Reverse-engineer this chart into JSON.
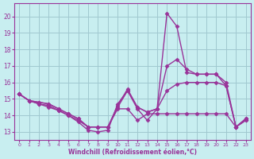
{
  "xlabel": "Windchill (Refroidissement éolien,°C)",
  "background_color": "#c8eef0",
  "grid_color": "#a0c8d0",
  "line_color": "#993399",
  "x": [
    0,
    1,
    2,
    3,
    4,
    5,
    6,
    7,
    8,
    9,
    10,
    11,
    12,
    13,
    14,
    15,
    16,
    17,
    18,
    19,
    20,
    21,
    22,
    23
  ],
  "series": [
    [
      15.3,
      14.9,
      14.8,
      14.7,
      14.4,
      14.1,
      13.8,
      13.3,
      13.3,
      13.3,
      14.4,
      14.4,
      13.7,
      14.1,
      14.1,
      14.1,
      14.1,
      14.1,
      14.1,
      14.1,
      14.1,
      14.1,
      13.3,
      13.7
    ],
    [
      15.3,
      14.9,
      14.8,
      14.7,
      14.4,
      14.1,
      13.8,
      13.3,
      13.3,
      13.3,
      14.5,
      15.5,
      14.4,
      13.7,
      14.4,
      15.5,
      15.9,
      16.0,
      16.0,
      16.0,
      16.0,
      15.8,
      13.3,
      13.7
    ],
    [
      15.3,
      14.9,
      14.7,
      14.6,
      14.3,
      14.0,
      13.7,
      13.3,
      13.3,
      13.3,
      14.6,
      15.6,
      14.5,
      14.2,
      14.4,
      17.0,
      17.4,
      16.8,
      16.5,
      16.5,
      16.5,
      16.0,
      13.3,
      13.8
    ],
    [
      15.3,
      14.9,
      14.7,
      14.5,
      14.3,
      14.0,
      13.6,
      13.1,
      13.0,
      13.1,
      14.7,
      15.5,
      14.5,
      14.2,
      14.4,
      20.2,
      19.4,
      16.6,
      16.5,
      16.5,
      16.5,
      15.8,
      13.3,
      13.8
    ]
  ],
  "ylim": [
    12.5,
    20.8
  ],
  "xlim": [
    -0.5,
    23.5
  ],
  "yticks": [
    13,
    14,
    15,
    16,
    17,
    18,
    19,
    20
  ],
  "xticks": [
    0,
    1,
    2,
    3,
    4,
    5,
    6,
    7,
    8,
    9,
    10,
    11,
    12,
    13,
    14,
    15,
    16,
    17,
    18,
    19,
    20,
    21,
    22,
    23
  ],
  "marker": "D",
  "markersize": 2.5,
  "linewidth": 1.0
}
